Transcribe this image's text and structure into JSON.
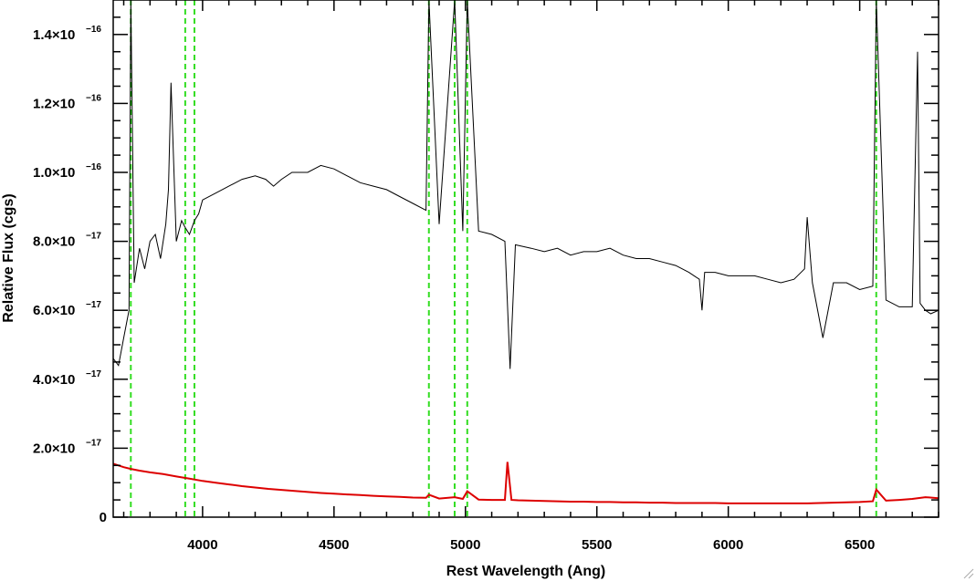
{
  "chart_data": {
    "type": "line",
    "title": "",
    "xlabel": "Rest Wavelength (Ang)",
    "ylabel": "Relative Flux (cgs)",
    "xlim": [
      3660,
      6800
    ],
    "ylim": [
      0,
      1.5e-16
    ],
    "x_ticks": [
      {
        "value": 4000,
        "label": "4000"
      },
      {
        "value": 4500,
        "label": "4500"
      },
      {
        "value": 5000,
        "label": "5000"
      },
      {
        "value": 5500,
        "label": "5500"
      },
      {
        "value": 6000,
        "label": "6000"
      },
      {
        "value": 6500,
        "label": "6500"
      }
    ],
    "y_ticks": [
      {
        "value": 0,
        "mantissa": "0",
        "exponent": ""
      },
      {
        "value": 2e-17,
        "mantissa": "2.0×10",
        "exponent": "−17"
      },
      {
        "value": 4e-17,
        "mantissa": "4.0×10",
        "exponent": "−17"
      },
      {
        "value": 6e-17,
        "mantissa": "6.0×10",
        "exponent": "−17"
      },
      {
        "value": 8e-17,
        "mantissa": "8.0×10",
        "exponent": "−17"
      },
      {
        "value": 1e-16,
        "mantissa": "1.0×10",
        "exponent": "−16"
      },
      {
        "value": 1.2e-16,
        "mantissa": "1.2×10",
        "exponent": "−16"
      },
      {
        "value": 1.4e-16,
        "mantissa": "1.4×10",
        "exponent": "−16"
      }
    ],
    "reference_lines": {
      "color": "#33dd22",
      "style": "dashed",
      "x": [
        3727,
        3934,
        3969,
        4861,
        4959,
        5007,
        6563
      ]
    },
    "series": [
      {
        "color": "#000000",
        "x": [
          3660,
          3680,
          3700,
          3720,
          3727,
          3740,
          3760,
          3780,
          3800,
          3820,
          3840,
          3860,
          3870,
          3880,
          3900,
          3920,
          3934,
          3950,
          3969,
          3985,
          4000,
          4050,
          4100,
          4150,
          4200,
          4240,
          4270,
          4300,
          4340,
          4400,
          4450,
          4500,
          4550,
          4600,
          4650,
          4700,
          4750,
          4800,
          4850,
          4861,
          4900,
          4959,
          4990,
          5007,
          5050,
          5100,
          5150,
          5170,
          5190,
          5250,
          5300,
          5350,
          5400,
          5450,
          5500,
          5550,
          5600,
          5650,
          5700,
          5750,
          5800,
          5850,
          5890,
          5900,
          5910,
          5950,
          6000,
          6050,
          6100,
          6150,
          6200,
          6250,
          6290,
          6300,
          6320,
          6360,
          6400,
          6450,
          6500,
          6550,
          6563,
          6600,
          6650,
          6700,
          6720,
          6730,
          6750,
          6770,
          6800
        ],
        "y": [
          4.6e-17,
          4.4e-17,
          5.2e-17,
          6e-17,
          1.5e-16,
          6.8e-17,
          7.8e-17,
          7.2e-17,
          8e-17,
          8.2e-17,
          7.5e-17,
          8.5e-17,
          9.5e-17,
          1.26e-16,
          8e-17,
          8.6e-17,
          8.4e-17,
          8.2e-17,
          8.6e-17,
          8.8e-17,
          9.2e-17,
          9.4e-17,
          9.6e-17,
          9.8e-17,
          9.9e-17,
          9.8e-17,
          9.6e-17,
          9.8e-17,
          1e-16,
          1e-16,
          1.02e-16,
          1.01e-16,
          9.9e-17,
          9.7e-17,
          9.6e-17,
          9.5e-17,
          9.3e-17,
          9.1e-17,
          8.9e-17,
          1.5e-16,
          8.5e-17,
          1.5e-16,
          8.3e-17,
          1.5e-16,
          8.3e-17,
          8.2e-17,
          8e-17,
          4.3e-17,
          7.9e-17,
          7.8e-17,
          7.7e-17,
          7.8e-17,
          7.6e-17,
          7.7e-17,
          7.7e-17,
          7.8e-17,
          7.6e-17,
          7.5e-17,
          7.5e-17,
          7.4e-17,
          7.3e-17,
          7.1e-17,
          6.9e-17,
          6e-17,
          7.1e-17,
          7.1e-17,
          7e-17,
          7e-17,
          7e-17,
          6.9e-17,
          6.8e-17,
          6.9e-17,
          7.2e-17,
          8.7e-17,
          6.8e-17,
          5.2e-17,
          6.8e-17,
          6.8e-17,
          6.6e-17,
          6.7e-17,
          1.5e-16,
          6.3e-17,
          6.1e-17,
          6.1e-17,
          1.35e-16,
          6.2e-17,
          6e-17,
          5.9e-17,
          6e-17
        ]
      },
      {
        "color": "#dd0000",
        "x": [
          3660,
          3680,
          3700,
          3727,
          3760,
          3800,
          3850,
          3900,
          3950,
          4000,
          4050,
          4100,
          4150,
          4200,
          4250,
          4300,
          4350,
          4400,
          4450,
          4500,
          4550,
          4600,
          4650,
          4700,
          4750,
          4800,
          4850,
          4861,
          4900,
          4959,
          4990,
          5007,
          5050,
          5100,
          5150,
          5160,
          5175,
          5200,
          5250,
          5300,
          5350,
          5400,
          5450,
          5500,
          5550,
          5600,
          5650,
          5700,
          5750,
          5800,
          5850,
          5900,
          5950,
          6000,
          6050,
          6100,
          6150,
          6200,
          6250,
          6300,
          6350,
          6400,
          6450,
          6500,
          6550,
          6563,
          6600,
          6650,
          6700,
          6750,
          6800
        ],
        "y": [
          1.55e-17,
          1.5e-17,
          1.45e-17,
          1.4e-17,
          1.35e-17,
          1.3e-17,
          1.25e-17,
          1.18e-17,
          1.12e-17,
          1.05e-17,
          1e-17,
          9.5e-18,
          9e-18,
          8.6e-18,
          8.2e-18,
          7.9e-18,
          7.6e-18,
          7.3e-18,
          7e-18,
          6.8e-18,
          6.6e-18,
          6.4e-18,
          6.2e-18,
          6e-18,
          5.9e-18,
          5.7e-18,
          5.6e-18,
          6.5e-18,
          5.4e-18,
          5.8e-18,
          5.3e-18,
          7.5e-18,
          5.1e-18,
          5e-18,
          5e-18,
          1.6e-17,
          5e-18,
          4.9e-18,
          4.8e-18,
          4.7e-18,
          4.6e-18,
          4.5e-18,
          4.5e-18,
          4.4e-18,
          4.4e-18,
          4.3e-18,
          4.3e-18,
          4.2e-18,
          4.2e-18,
          4.1e-18,
          4.1e-18,
          4.1e-18,
          4.1e-18,
          4e-18,
          4e-18,
          4e-18,
          4e-18,
          4e-18,
          4e-18,
          4e-18,
          4.1e-18,
          4.2e-18,
          4.3e-18,
          4.4e-18,
          4.6e-18,
          8e-18,
          4.8e-18,
          5e-18,
          5.3e-18,
          5.8e-18,
          5.5e-18
        ]
      }
    ]
  }
}
